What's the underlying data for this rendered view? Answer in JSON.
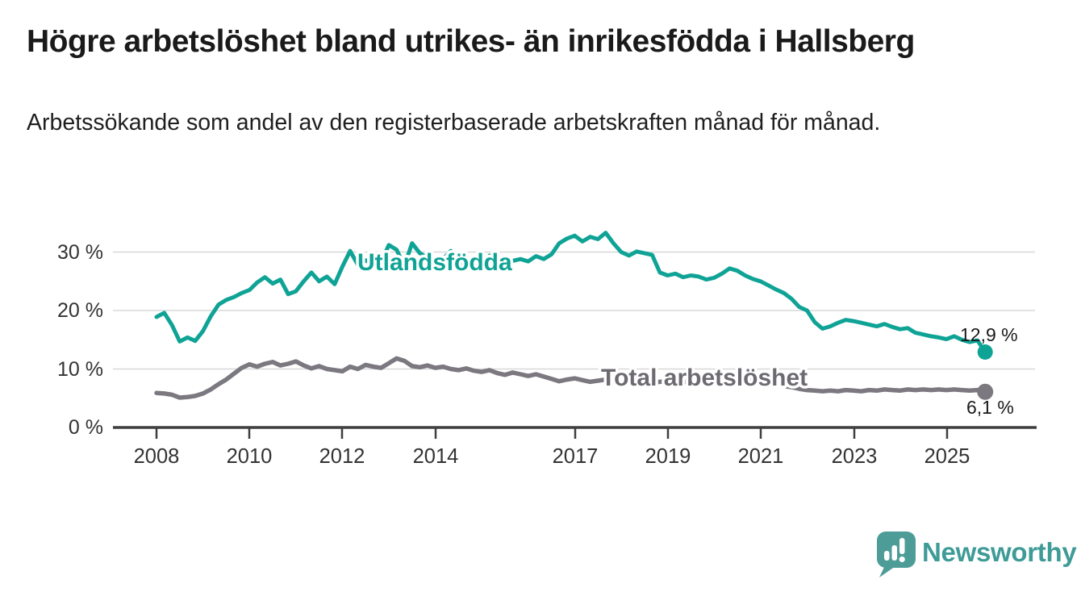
{
  "header": {
    "title": "Högre arbetslöshet bland utrikes- än inrikesfödda i Hallsberg",
    "subtitle": "Arbetssökande som andel av den registerbaserade arbetskraften månad för månad."
  },
  "chart_data": {
    "type": "line",
    "title": "Högre arbetslöshet bland utrikes- än inrikesfödda i Hallsberg",
    "subtitle": "Arbetssökande som andel av den registerbaserade arbetskraften månad för månad.",
    "x_unit": "decimal_year",
    "x_start": 2008,
    "x_step_years": 0.16667,
    "xlim": [
      2007.1,
      2026.4
    ],
    "ylim": [
      0,
      34
    ],
    "grid": "horizontal",
    "yticks": [
      {
        "value": 0,
        "label": "0 %"
      },
      {
        "value": 10,
        "label": "10 %"
      },
      {
        "value": 20,
        "label": "20 %"
      },
      {
        "value": 30,
        "label": "30 %"
      }
    ],
    "xticks": [
      {
        "value": 2008,
        "label": "2008"
      },
      {
        "value": 2010,
        "label": "2010"
      },
      {
        "value": 2012,
        "label": "2012"
      },
      {
        "value": 2014,
        "label": "2014"
      },
      {
        "value": 2017,
        "label": "2017"
      },
      {
        "value": 2019,
        "label": "2019"
      },
      {
        "value": 2021,
        "label": "2021"
      },
      {
        "value": 2023,
        "label": "2023"
      },
      {
        "value": 2025,
        "label": "2025"
      }
    ],
    "series": [
      {
        "name": "Utlandsfödda",
        "color": "#0fa396",
        "end_label": "12,9 %",
        "end_value": 12.9,
        "values": [
          18.9,
          19.6,
          17.5,
          14.7,
          15.4,
          14.8,
          16.5,
          19.0,
          21.0,
          21.8,
          22.3,
          23.0,
          23.5,
          24.8,
          25.7,
          24.6,
          25.3,
          22.8,
          23.3,
          25.0,
          26.5,
          25.0,
          25.8,
          24.5,
          27.5,
          30.2,
          27.8,
          28.6,
          27.8,
          28.3,
          31.2,
          30.4,
          27.6,
          31.5,
          29.8,
          29.0,
          28.2,
          28.8,
          30.2,
          28.6,
          27.6,
          26.8,
          27.3,
          29.4,
          28.3,
          27.6,
          28.5,
          28.8,
          28.4,
          29.3,
          28.8,
          29.6,
          31.5,
          32.3,
          32.8,
          31.8,
          32.6,
          32.2,
          33.3,
          31.5,
          30.0,
          29.4,
          30.1,
          29.8,
          29.5,
          26.5,
          26.0,
          26.3,
          25.7,
          26.0,
          25.8,
          25.3,
          25.6,
          26.3,
          27.2,
          26.8,
          26.0,
          25.4,
          25.0,
          24.3,
          23.6,
          23.0,
          22.0,
          20.6,
          20.0,
          18.0,
          16.9,
          17.3,
          17.9,
          18.4,
          18.2,
          17.9,
          17.6,
          17.3,
          17.7,
          17.2,
          16.8,
          17.0,
          16.2,
          15.9,
          15.6,
          15.4,
          15.1,
          15.6,
          15.0,
          14.6,
          14.9,
          12.9
        ]
      },
      {
        "name": "Total arbetslöshet",
        "color": "#7b7880",
        "end_label": "6,1 %",
        "end_value": 6.1,
        "values": [
          5.9,
          5.8,
          5.6,
          5.1,
          5.2,
          5.4,
          5.8,
          6.5,
          7.4,
          8.2,
          9.2,
          10.2,
          10.8,
          10.4,
          10.9,
          11.2,
          10.6,
          10.9,
          11.3,
          10.6,
          10.1,
          10.5,
          10.0,
          9.8,
          9.6,
          10.4,
          10.0,
          10.7,
          10.4,
          10.2,
          11.0,
          11.8,
          11.4,
          10.5,
          10.3,
          10.6,
          10.2,
          10.4,
          10.0,
          9.8,
          10.1,
          9.7,
          9.5,
          9.8,
          9.3,
          9.0,
          9.4,
          9.1,
          8.8,
          9.1,
          8.7,
          8.3,
          7.9,
          8.2,
          8.4,
          8.1,
          7.8,
          8.0,
          8.2,
          7.9,
          7.7,
          7.9,
          8.1,
          7.8,
          7.6,
          7.8,
          7.9,
          8.0,
          7.8,
          7.7,
          7.8,
          7.9,
          8.0,
          8.4,
          8.7,
          8.5,
          8.2,
          8.0,
          7.9,
          7.7,
          7.4,
          7.1,
          6.9,
          6.6,
          6.4,
          6.3,
          6.2,
          6.3,
          6.2,
          6.4,
          6.3,
          6.2,
          6.4,
          6.3,
          6.5,
          6.4,
          6.3,
          6.5,
          6.4,
          6.5,
          6.4,
          6.5,
          6.4,
          6.5,
          6.4,
          6.3,
          6.4,
          6.1
        ]
      }
    ],
    "legend_position": "inline-labels"
  },
  "branding": {
    "wordmark": "Newsworthy",
    "logo_color": "#4d9c98",
    "text_color": "#3e9b97"
  }
}
